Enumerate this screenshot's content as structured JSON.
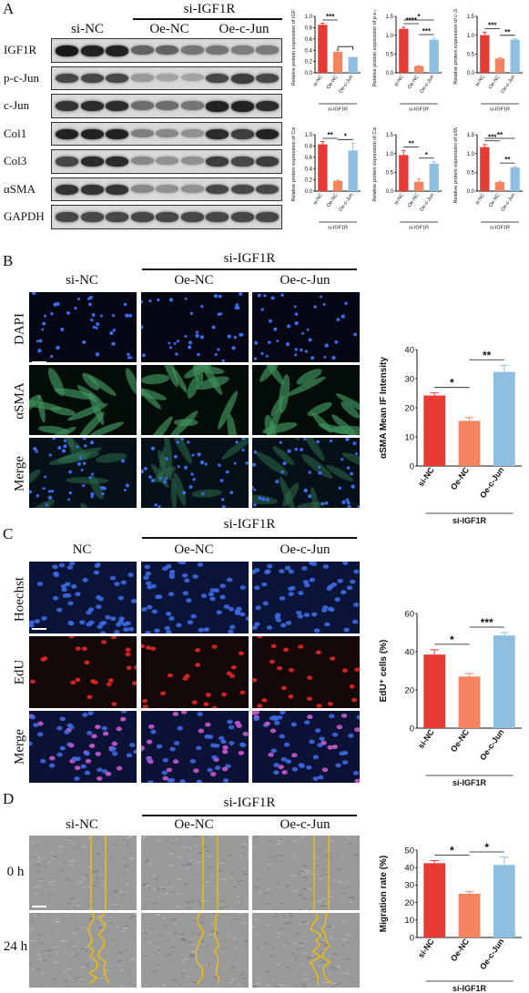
{
  "panels": {
    "A": {
      "letter": "A",
      "group_header": "si-IGF1R",
      "columns": [
        "si-NC",
        "Oe-NC",
        "Oe-c-Jun"
      ],
      "blot_rows": [
        "IGF1R",
        "p-c-Jun",
        "c-Jun",
        "Col1",
        "Col3",
        "αSMA",
        "GAPDH"
      ],
      "colors": {
        "si_nc": "#e83a35",
        "oe_nc": "#f4845f",
        "oe_cjun": "#8fbfe0"
      }
    },
    "B": {
      "letter": "B",
      "group_header": "si-IGF1R",
      "columns": [
        "si-NC",
        "Oe-NC",
        "Oe-c-Jun"
      ],
      "rows": [
        "DAPI",
        "αSMA",
        "Merge"
      ]
    },
    "C": {
      "letter": "C",
      "group_header": "si-IGF1R",
      "columns": [
        "NC",
        "Oe-NC",
        "Oe-c-Jun"
      ],
      "rows": [
        "Hoechst",
        "EdU",
        "Merge"
      ]
    },
    "D": {
      "letter": "D",
      "group_header": "si-IGF1R",
      "columns": [
        "si-NC",
        "Oe-NC",
        "Oe-c-Jun"
      ],
      "rows": [
        "0 h",
        "24 h"
      ]
    }
  },
  "chart_data": [
    {
      "type": "bar",
      "categories": [
        "si-NC",
        "Oe-NC",
        "Oe-c-Jun"
      ],
      "values": [
        0.85,
        0.37,
        0.28
      ],
      "errors": [
        0.03,
        0.03,
        0.0
      ],
      "ylabel": "Relative protein expression of IGF1R",
      "ylim": [
        0,
        1.0
      ],
      "yticks": [
        "0.0",
        "0.2",
        "0.4",
        "0.6",
        "0.8",
        "1.0"
      ],
      "group_label": "si-IGF1R",
      "significance": [
        {
          "label": "***",
          "from": 0,
          "to": 1
        },
        {
          "label": "",
          "from": 1,
          "to": 2
        }
      ]
    },
    {
      "type": "bar",
      "categories": [
        "si-NC",
        "Oe-NC",
        "Oe-c-Jun"
      ],
      "values": [
        1.17,
        0.18,
        0.88
      ],
      "errors": [
        0.04,
        0.01,
        0.04
      ],
      "ylabel": "Relative protein expression of p-c-Jun",
      "ylim": [
        0,
        1.5
      ],
      "yticks": [
        "0.0",
        "0.5",
        "1.0",
        "1.5"
      ],
      "group_label": "si-IGF1R",
      "significance": [
        {
          "label": "*",
          "from": 0,
          "to": 2
        },
        {
          "label": "****",
          "from": 0,
          "to": 1
        },
        {
          "label": "***",
          "from": 1,
          "to": 2
        }
      ]
    },
    {
      "type": "bar",
      "categories": [
        "si-NC",
        "Oe-NC",
        "Oe-c-Jun"
      ],
      "values": [
        1.0,
        0.38,
        0.88
      ],
      "errors": [
        0.08,
        0.02,
        0.02
      ],
      "ylabel": "Relative protein expression of c-Jun",
      "ylim": [
        0,
        1.5
      ],
      "yticks": [
        "0.0",
        "0.5",
        "1.0",
        "1.5"
      ],
      "group_label": "si-IGF1R",
      "significance": [
        {
          "label": "***",
          "from": 0,
          "to": 1
        },
        {
          "label": "**",
          "from": 1,
          "to": 2
        }
      ]
    },
    {
      "type": "bar",
      "categories": [
        "si-NC",
        "Oe-NC",
        "Oe-c-Jun"
      ],
      "values": [
        0.83,
        0.18,
        0.72
      ],
      "errors": [
        0.05,
        0.01,
        0.13
      ],
      "ylabel": "Relative protein expression of Col1",
      "ylim": [
        0,
        1.0
      ],
      "yticks": [
        "0.0",
        "0.2",
        "0.4",
        "0.6",
        "0.8",
        "1.0"
      ],
      "group_label": "si-IGF1R",
      "significance": [
        {
          "label": "**",
          "from": 0,
          "to": 1
        },
        {
          "label": "*",
          "from": 1,
          "to": 2
        }
      ]
    },
    {
      "type": "bar",
      "categories": [
        "si-NC",
        "Oe-NC",
        "Oe-c-Jun"
      ],
      "values": [
        0.96,
        0.25,
        0.73
      ],
      "errors": [
        0.12,
        0.07,
        0.05
      ],
      "ylabel": "Relative protein expression of Col3",
      "ylim": [
        0,
        1.5
      ],
      "yticks": [
        "0.0",
        "0.5",
        "1.0",
        "1.5"
      ],
      "group_label": "si-IGF1R",
      "significance": [
        {
          "label": "**",
          "from": 0,
          "to": 1
        },
        {
          "label": "*",
          "from": 1,
          "to": 2
        }
      ]
    },
    {
      "type": "bar",
      "categories": [
        "si-NC",
        "Oe-NC",
        "Oe-c-Jun"
      ],
      "values": [
        1.17,
        0.24,
        0.63
      ],
      "errors": [
        0.07,
        0.02,
        0.02
      ],
      "ylabel": "Relative protein expression of αSMA",
      "ylim": [
        0,
        1.5
      ],
      "yticks": [
        "0.0",
        "0.5",
        "1.0",
        "1.5"
      ],
      "group_label": "si-IGF1R",
      "significance": [
        {
          "label": "**",
          "from": 0,
          "to": 2
        },
        {
          "label": "***",
          "from": 0,
          "to": 1
        },
        {
          "label": "**",
          "from": 1,
          "to": 2
        }
      ]
    },
    {
      "type": "bar",
      "categories": [
        "si-NC",
        "Oe-NC",
        "Oe-c-Jun"
      ],
      "values": [
        24.2,
        15.5,
        32.3
      ],
      "errors": [
        0.9,
        1.1,
        2.3
      ],
      "ylabel": "αSMA Mean IF Intensity",
      "ylim": [
        0,
        40
      ],
      "yticks": [
        "0",
        "10",
        "20",
        "30",
        "40"
      ],
      "group_label": "si-IGF1R",
      "significance": [
        {
          "label": "*",
          "from": 0,
          "to": 1
        },
        {
          "label": "**",
          "from": 1,
          "to": 2
        }
      ]
    },
    {
      "type": "bar",
      "categories": [
        "si-NC",
        "Oe-NC",
        "Oe-c-Jun"
      ],
      "values": [
        38.5,
        27.0,
        48.5
      ],
      "errors": [
        2.5,
        1.5,
        1.5
      ],
      "ylabel": "EdU⁺ cells (%)",
      "ylim": [
        0,
        60
      ],
      "yticks": [
        "0",
        "20",
        "40",
        "60"
      ],
      "group_label": "si-IGF1R",
      "significance": [
        {
          "label": "*",
          "from": 0,
          "to": 1
        },
        {
          "label": "***",
          "from": 1,
          "to": 2
        }
      ]
    },
    {
      "type": "bar",
      "categories": [
        "si-NC",
        "Oe-NC",
        "Oe-c-Jun"
      ],
      "values": [
        42.5,
        25.0,
        41.5
      ],
      "errors": [
        1.5,
        1.2,
        4.5
      ],
      "ylabel": "Migration rate (%)",
      "ylim": [
        0,
        50
      ],
      "yticks": [
        "0",
        "10",
        "20",
        "30",
        "40",
        "50"
      ],
      "group_label": "si-IGF1R",
      "significance": [
        {
          "label": "*",
          "from": 0,
          "to": 1
        },
        {
          "label": "*",
          "from": 1,
          "to": 2
        }
      ]
    }
  ]
}
